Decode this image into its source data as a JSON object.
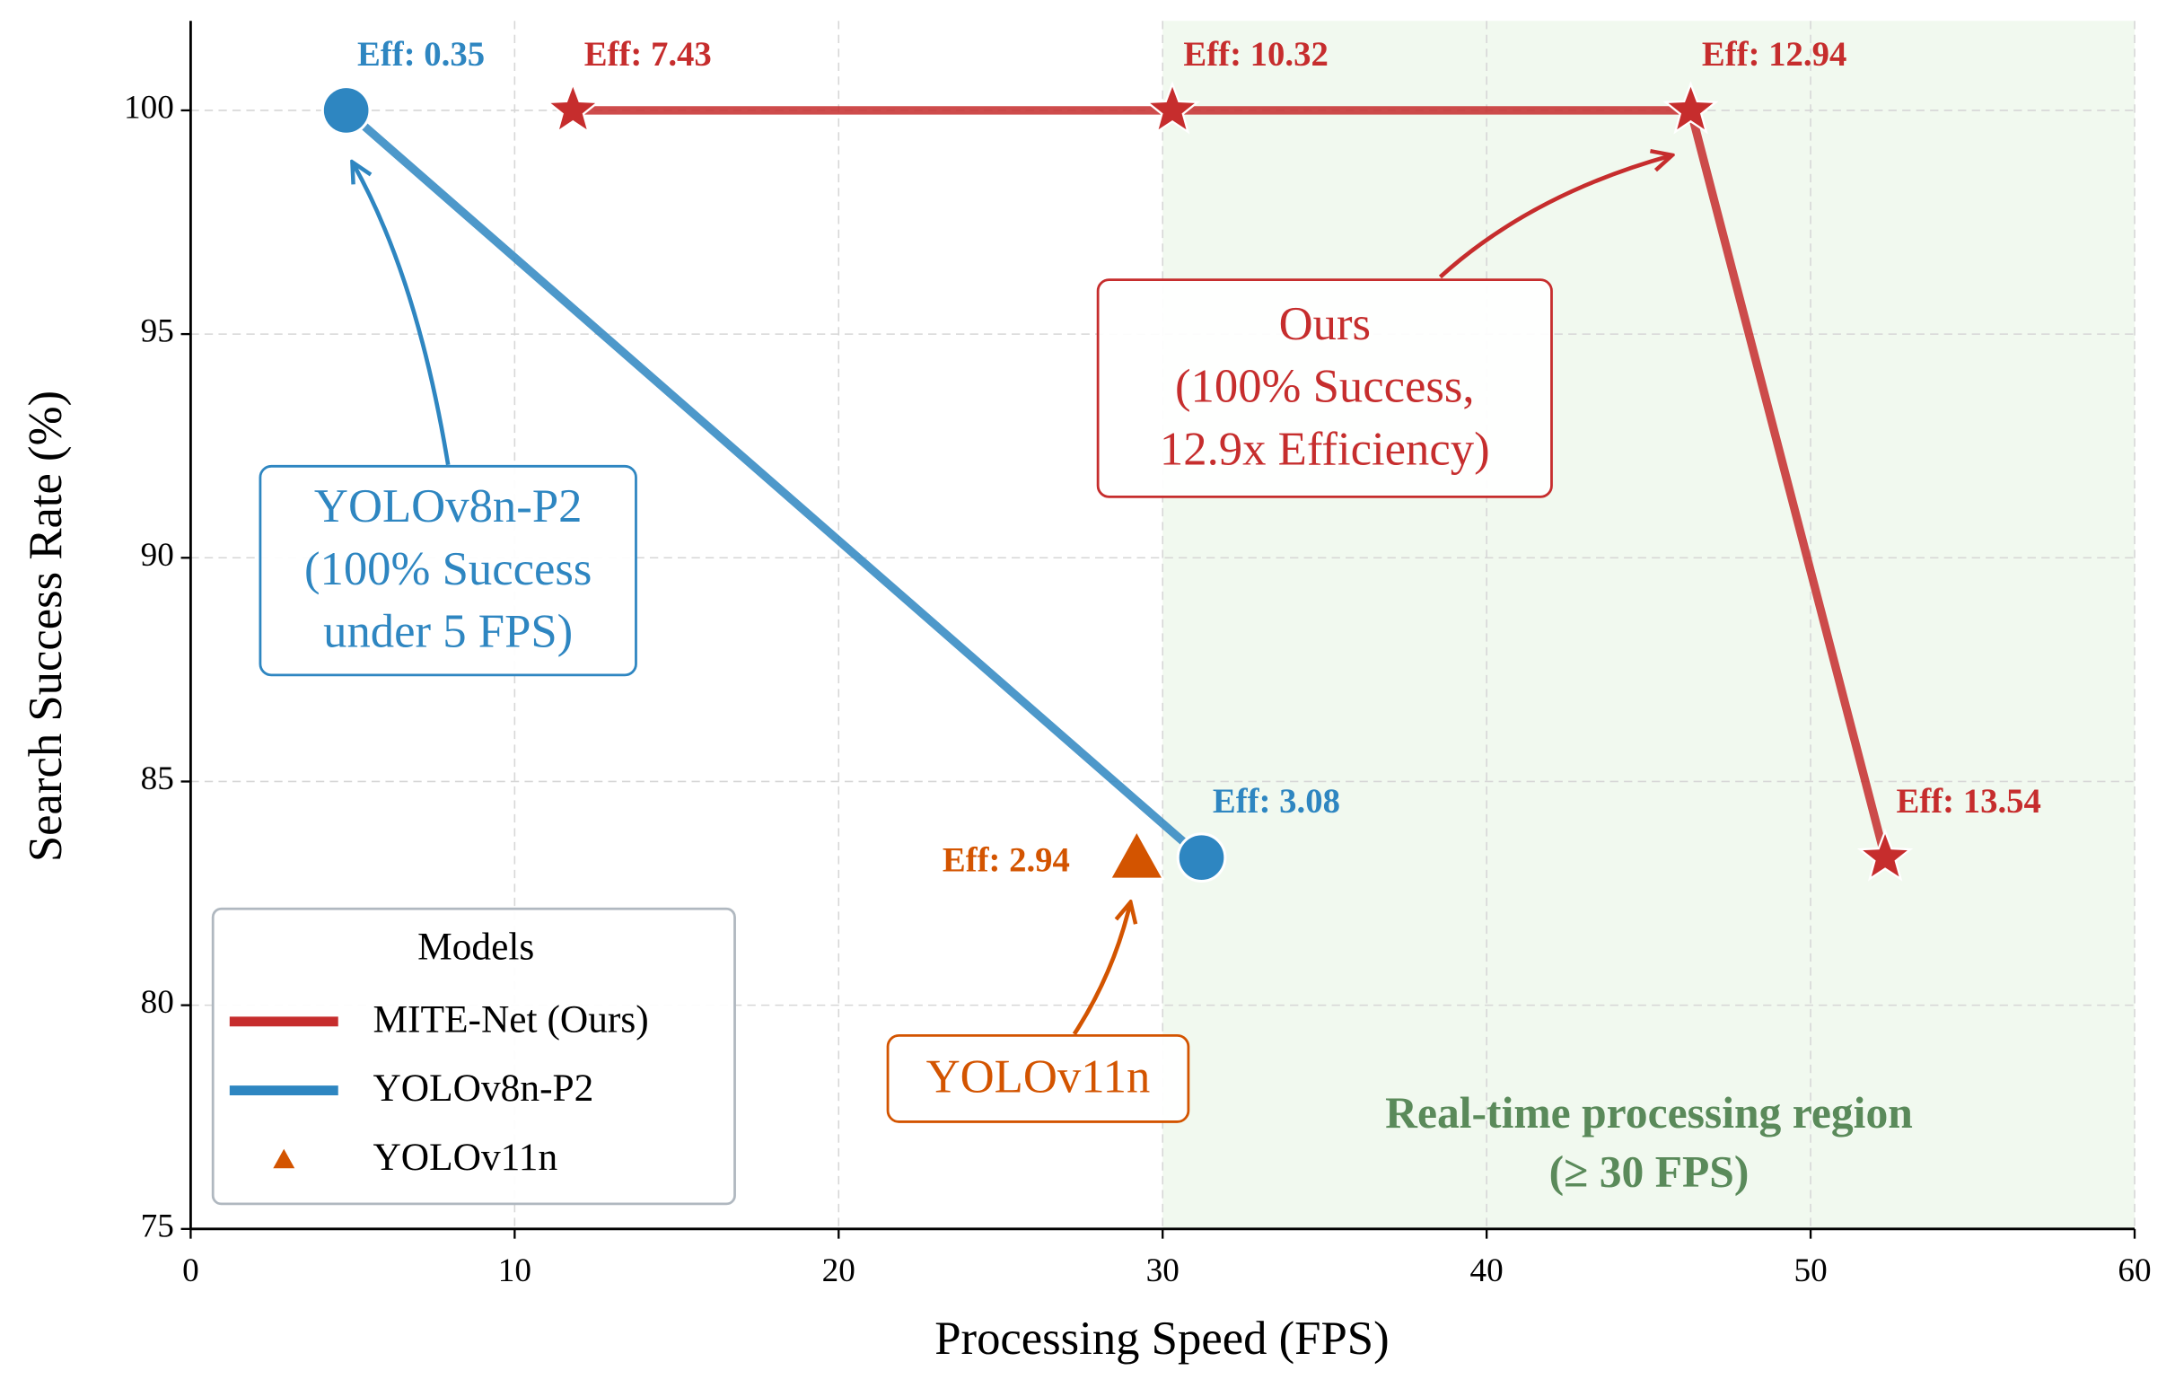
{
  "chart_data": {
    "type": "scatter",
    "x_label": "Processing Speed (FPS)",
    "y_label": "Search Success Rate (%)",
    "xlim": [
      0,
      60
    ],
    "ylim": [
      75,
      102
    ],
    "xticks": [
      0,
      10,
      20,
      30,
      40,
      50,
      60
    ],
    "yticks": [
      75,
      80,
      85,
      90,
      95,
      100
    ],
    "grid": true,
    "legend_title": "Models",
    "legend_position": "lower left",
    "series": [
      {
        "name": "MITE-Net (Ours)",
        "color": "#c62d2d",
        "marker": "star",
        "line": true,
        "x": [
          11.8,
          30.3,
          46.3,
          52.3
        ],
        "values": [
          100,
          100,
          100,
          83.3
        ],
        "labels": [
          "Eff: 7.43",
          "Eff: 10.32",
          "Eff: 12.94",
          "Eff: 13.54"
        ]
      },
      {
        "name": "YOLOv8n-P2",
        "color": "#2e86c1",
        "marker": "circle",
        "line": true,
        "x": [
          4.8,
          31.2
        ],
        "values": [
          100,
          83.3
        ],
        "labels": [
          "Eff: 0.35",
          "Eff: 3.08"
        ]
      },
      {
        "name": "YOLOv11n",
        "color": "#d35400",
        "marker": "triangle",
        "line": false,
        "x": [
          29.2
        ],
        "values": [
          83.3
        ],
        "labels": [
          "Eff: 2.94"
        ]
      }
    ],
    "region": {
      "x0": 30,
      "color": "#e8f5e4",
      "text_color": "#5a8a5a",
      "lines": [
        "Real-time processing region",
        "(≥ 30 FPS)"
      ]
    },
    "annotations": [
      {
        "series": 1,
        "point": 0,
        "lines": [
          "YOLOv8n-P2",
          "(100% Success",
          "under 5 FPS)"
        ]
      },
      {
        "series": 0,
        "point": 2,
        "lines": [
          "Ours",
          "(100% Success,",
          "12.9x Efficiency)"
        ]
      },
      {
        "series": 2,
        "point": 0,
        "lines": [
          "YOLOv11n"
        ]
      }
    ]
  }
}
